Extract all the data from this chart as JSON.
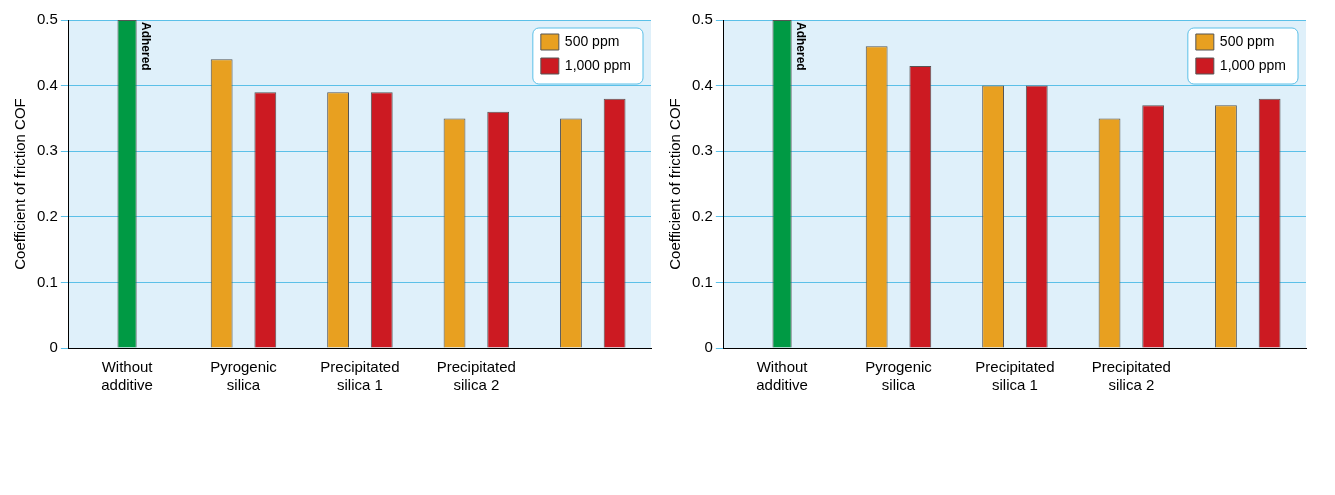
{
  "chart_data": [
    {
      "type": "bar",
      "ylabel": "Coefficient of friction COF",
      "categories": [
        "Without additive",
        "Pyrogenic silica",
        "Precipitated silica 1",
        "Precipitated silica 2",
        null
      ],
      "series": [
        {
          "color": "#009a44",
          "values": [
            0.5,
            null,
            null,
            null,
            null
          ]
        },
        {
          "name": "500 ppm",
          "color": "#e8a020",
          "values": [
            null,
            0.44,
            0.39,
            0.35,
            0.35
          ]
        },
        {
          "name": "1,000 ppm",
          "color": "#cc1a22",
          "values": [
            null,
            0.39,
            0.39,
            0.36,
            0.38
          ]
        }
      ],
      "ylim": [
        0,
        0.5
      ],
      "yticks": [
        0,
        0.1,
        0.2,
        0.3,
        0.4,
        0.5
      ],
      "grid": "y",
      "legend": "top right",
      "annotations": [
        {
          "text": "Adhered",
          "x": "Without additive",
          "y": 0.5
        }
      ]
    },
    {
      "type": "bar",
      "ylabel": "Coefficient of friction COF",
      "categories": [
        "Without additive",
        "Pyrogenic silica",
        "Precipitated silica 1",
        "Precipitated silica 2",
        null
      ],
      "series": [
        {
          "color": "#009a44",
          "values": [
            0.5,
            null,
            null,
            null,
            null
          ]
        },
        {
          "name": "500 ppm",
          "color": "#e8a020",
          "values": [
            null,
            0.46,
            0.4,
            0.35,
            0.37
          ]
        },
        {
          "name": "1,000 ppm",
          "color": "#cc1a22",
          "values": [
            null,
            0.43,
            0.4,
            0.37,
            0.38
          ]
        }
      ],
      "ylim": [
        0,
        0.5
      ],
      "yticks": [
        0,
        0.1,
        0.2,
        0.3,
        0.4,
        0.5
      ],
      "grid": "y",
      "legend": "top right",
      "annotations": [
        {
          "text": "Adhered",
          "x": "Without additive",
          "y": 0.5
        }
      ]
    }
  ]
}
